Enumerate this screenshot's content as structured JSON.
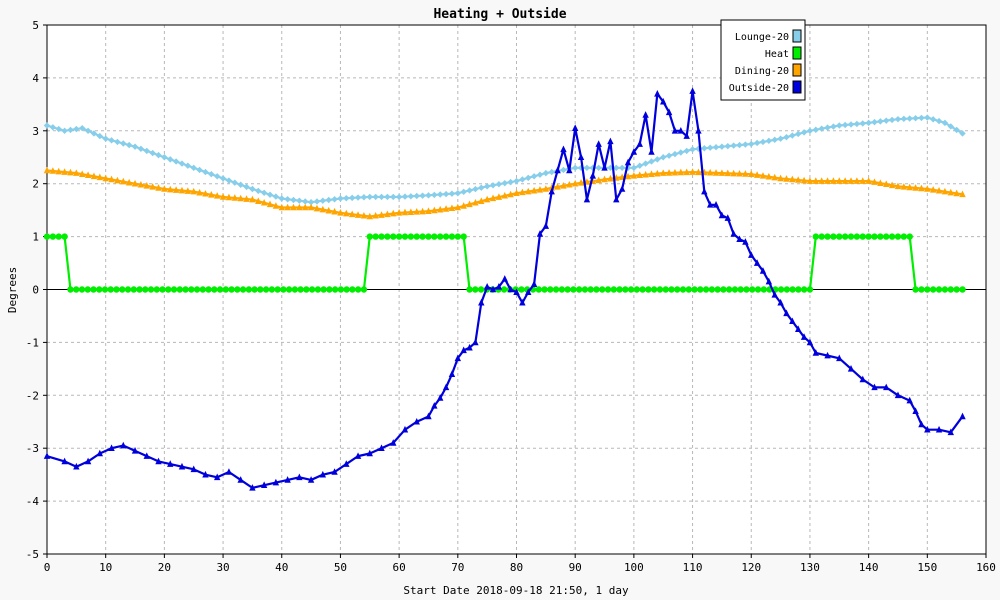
{
  "chart_data": {
    "type": "line",
    "title": "Heating + Outside",
    "xlabel": "Start Date 2018-09-18 21:50, 1 day",
    "ylabel": "Degrees",
    "xlim": [
      0,
      160
    ],
    "ylim": [
      -5,
      5
    ],
    "xticks": [
      0,
      10,
      20,
      30,
      40,
      50,
      60,
      70,
      80,
      90,
      100,
      110,
      120,
      130,
      140,
      150,
      160
    ],
    "yticks": [
      -5,
      -4,
      -3,
      -2,
      -1,
      0,
      1,
      2,
      3,
      4,
      5
    ],
    "grid": true,
    "legend_position": "top-right",
    "series": [
      {
        "name": "Lounge-20",
        "color": "#87ceeb",
        "marker": "diamond",
        "x": [
          0,
          3,
          6,
          10,
          15,
          20,
          25,
          30,
          35,
          40,
          45,
          50,
          55,
          60,
          65,
          70,
          75,
          80,
          85,
          90,
          95,
          100,
          105,
          110,
          115,
          120,
          125,
          130,
          135,
          140,
          145,
          150,
          153,
          156
        ],
        "y": [
          3.1,
          3.0,
          3.05,
          2.85,
          2.7,
          2.5,
          2.3,
          2.1,
          1.9,
          1.72,
          1.65,
          1.72,
          1.75,
          1.75,
          1.78,
          1.82,
          1.95,
          2.05,
          2.2,
          2.3,
          2.3,
          2.3,
          2.5,
          2.65,
          2.7,
          2.75,
          2.85,
          3.0,
          3.1,
          3.15,
          3.22,
          3.25,
          3.15,
          2.95
        ]
      },
      {
        "name": "Heat",
        "color": "#00ee00",
        "marker": "circle",
        "x": [
          0,
          3,
          4,
          54,
          55,
          71,
          72,
          130,
          131,
          147,
          148,
          156
        ],
        "y": [
          1,
          1,
          0,
          0,
          1,
          1,
          0,
          0,
          1,
          1,
          0,
          0
        ]
      },
      {
        "name": "Dining-20",
        "color": "#ffa500",
        "marker": "triangle",
        "x": [
          0,
          5,
          10,
          15,
          20,
          25,
          30,
          35,
          40,
          45,
          50,
          55,
          60,
          65,
          70,
          75,
          80,
          85,
          90,
          95,
          100,
          105,
          110,
          115,
          120,
          125,
          130,
          135,
          140,
          145,
          150,
          156
        ],
        "y": [
          2.25,
          2.2,
          2.1,
          2.0,
          1.9,
          1.85,
          1.75,
          1.7,
          1.55,
          1.55,
          1.45,
          1.38,
          1.45,
          1.48,
          1.55,
          1.7,
          1.82,
          1.9,
          2.0,
          2.08,
          2.15,
          2.2,
          2.22,
          2.2,
          2.18,
          2.1,
          2.05,
          2.05,
          2.05,
          1.95,
          1.9,
          1.8
        ]
      },
      {
        "name": "Outside-20",
        "color": "#0000dd",
        "marker": "triangle",
        "x": [
          0,
          3,
          5,
          7,
          9,
          11,
          13,
          15,
          17,
          19,
          21,
          23,
          25,
          27,
          29,
          31,
          33,
          35,
          37,
          39,
          41,
          43,
          45,
          47,
          49,
          51,
          53,
          55,
          57,
          59,
          61,
          63,
          65,
          66,
          67,
          68,
          69,
          70,
          71,
          72,
          73,
          74,
          75,
          76,
          77,
          78,
          79,
          80,
          81,
          82,
          83,
          84,
          85,
          86,
          87,
          88,
          89,
          90,
          91,
          92,
          93,
          94,
          95,
          96,
          97,
          98,
          99,
          100,
          101,
          102,
          103,
          104,
          105,
          106,
          107,
          108,
          109,
          110,
          111,
          112,
          113,
          114,
          115,
          116,
          117,
          118,
          119,
          120,
          121,
          122,
          123,
          124,
          125,
          126,
          127,
          128,
          129,
          130,
          131,
          133,
          135,
          137,
          139,
          141,
          143,
          145,
          147,
          148,
          149,
          150,
          152,
          154,
          156
        ],
        "y": [
          -3.15,
          -3.25,
          -3.35,
          -3.25,
          -3.1,
          -3.0,
          -2.95,
          -3.05,
          -3.15,
          -3.25,
          -3.3,
          -3.35,
          -3.4,
          -3.5,
          -3.55,
          -3.45,
          -3.6,
          -3.75,
          -3.7,
          -3.65,
          -3.6,
          -3.55,
          -3.6,
          -3.5,
          -3.45,
          -3.3,
          -3.15,
          -3.1,
          -3.0,
          -2.9,
          -2.65,
          -2.5,
          -2.4,
          -2.2,
          -2.05,
          -1.85,
          -1.6,
          -1.3,
          -1.15,
          -1.1,
          -1.0,
          -0.25,
          0.05,
          0.0,
          0.05,
          0.2,
          0.0,
          -0.05,
          -0.25,
          -0.05,
          0.1,
          1.05,
          1.2,
          1.85,
          2.25,
          2.65,
          2.25,
          3.05,
          2.5,
          1.7,
          2.15,
          2.75,
          2.3,
          2.8,
          1.7,
          1.9,
          2.4,
          2.6,
          2.75,
          3.3,
          2.6,
          3.7,
          3.55,
          3.35,
          3.0,
          3.0,
          2.9,
          3.75,
          3.0,
          1.85,
          1.6,
          1.6,
          1.4,
          1.35,
          1.05,
          0.95,
          0.9,
          0.65,
          0.5,
          0.35,
          0.15,
          -0.1,
          -0.25,
          -0.45,
          -0.6,
          -0.75,
          -0.9,
          -1.0,
          -1.2,
          -1.25,
          -1.3,
          -1.5,
          -1.7,
          -1.85,
          -1.85,
          -2.0,
          -2.1,
          -2.3,
          -2.55,
          -2.65,
          -2.65,
          -2.7,
          -2.4
        ]
      }
    ]
  }
}
